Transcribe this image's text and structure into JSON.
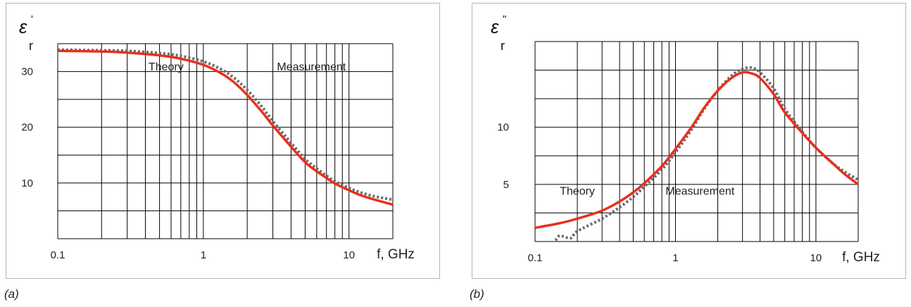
{
  "colors": {
    "theory": "#e8301e",
    "measurement": "#6b6b6b",
    "grid": "#000000",
    "frame": "#b5b5b5"
  },
  "captions": {
    "a": "(a)",
    "b": "(b)"
  },
  "chart_data": [
    {
      "type": "line",
      "id": "a",
      "ylabel_symbol": "ε",
      "ylabel_prime": "'",
      "ylabel_sub": "r",
      "xlabel": "f, GHz",
      "xscale": "log",
      "xlim": [
        0.1,
        20
      ],
      "ylim": [
        0,
        35
      ],
      "xticks": [
        {
          "value": 0.1,
          "label": "0.1"
        },
        {
          "value": 1,
          "label": "1"
        },
        {
          "value": 10,
          "label": "10"
        }
      ],
      "yticks": [
        {
          "value": 10,
          "label": "10"
        },
        {
          "value": 20,
          "label": "20"
        },
        {
          "value": 30,
          "label": "30"
        }
      ],
      "ygrid": [
        5,
        10,
        15,
        20,
        25,
        30,
        35
      ],
      "annotations": [
        {
          "text": "Theory",
          "x": 0.42,
          "y": 30.2
        },
        {
          "text": "Measurement",
          "x": 3.2,
          "y": 30.2
        }
      ],
      "series": [
        {
          "name": "Theory",
          "style": "solid",
          "x": [
            0.1,
            0.2,
            0.3,
            0.5,
            0.7,
            1,
            1.3,
            1.6,
            2,
            2.5,
            3,
            4,
            5,
            6,
            7,
            8,
            10,
            12,
            15,
            20
          ],
          "y": [
            33.7,
            33.6,
            33.4,
            32.9,
            32.3,
            31.2,
            29.8,
            28.2,
            25.8,
            22.9,
            20.3,
            16.5,
            13.7,
            12.1,
            10.9,
            9.9,
            8.7,
            7.8,
            7.0,
            6.1
          ]
        },
        {
          "name": "Measurement",
          "style": "dotted",
          "x": [
            0.1,
            0.2,
            0.3,
            0.5,
            0.7,
            1,
            1.3,
            1.6,
            2,
            2.5,
            3,
            4,
            5,
            6,
            7,
            8,
            10,
            12,
            15,
            20
          ],
          "y": [
            33.9,
            33.8,
            33.7,
            33.3,
            32.8,
            31.8,
            30.5,
            29.0,
            26.7,
            23.8,
            21.1,
            17.2,
            14.3,
            12.6,
            11.3,
            10.3,
            9.1,
            8.3,
            7.6,
            7.0
          ]
        }
      ]
    },
    {
      "type": "line",
      "id": "b",
      "ylabel_symbol": "ε",
      "ylabel_prime": "\"",
      "ylabel_sub": "r",
      "xlabel": "f, GHz",
      "xscale": "log",
      "xlim": [
        0.1,
        20
      ],
      "ylim": [
        0,
        17.5
      ],
      "xticks": [
        {
          "value": 0.1,
          "label": "0.1"
        },
        {
          "value": 1,
          "label": "1"
        },
        {
          "value": 10,
          "label": "10"
        }
      ],
      "yticks": [
        {
          "value": 5,
          "label": "5"
        },
        {
          "value": 10,
          "label": "10"
        }
      ],
      "ygrid": [
        2.5,
        5,
        7.5,
        10,
        12.5,
        15,
        17.5
      ],
      "annotations": [
        {
          "text": "Theory",
          "x": 0.15,
          "y": 4.1
        },
        {
          "text": "Measurement",
          "x": 0.85,
          "y": 4.1
        }
      ],
      "series": [
        {
          "name": "Theory",
          "style": "solid",
          "x": [
            0.1,
            0.15,
            0.2,
            0.3,
            0.4,
            0.5,
            0.6,
            0.8,
            1,
            1.3,
            1.6,
            2,
            2.5,
            3,
            3.5,
            4,
            5,
            6,
            8,
            10,
            13,
            16,
            20
          ],
          "y": [
            1.2,
            1.6,
            2.0,
            2.7,
            3.5,
            4.3,
            5.1,
            6.6,
            8.1,
            10.0,
            11.7,
            13.2,
            14.3,
            14.8,
            14.7,
            14.3,
            12.9,
            11.3,
            9.5,
            8.2,
            6.9,
            5.9,
            5.0
          ]
        },
        {
          "name": "Measurement",
          "style": "dotted",
          "x": [
            0.14,
            0.15,
            0.18,
            0.2,
            0.3,
            0.4,
            0.5,
            0.6,
            0.8,
            1,
            1.3,
            1.6,
            2,
            2.5,
            3,
            3.5,
            4,
            5,
            6,
            8,
            10,
            13,
            16,
            20
          ],
          "y": [
            0.1,
            0.5,
            0.3,
            0.9,
            2.0,
            3.0,
            3.9,
            4.8,
            6.3,
            7.8,
            9.8,
            11.6,
            13.2,
            14.5,
            15.1,
            15.2,
            14.8,
            13.4,
            11.6,
            9.6,
            8.2,
            6.9,
            6.1,
            5.4
          ]
        }
      ]
    }
  ]
}
